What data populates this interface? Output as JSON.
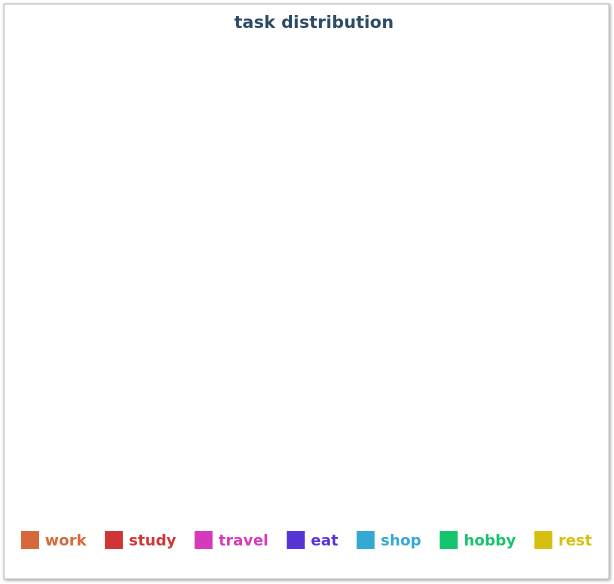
{
  "chart_data": {
    "type": "pie",
    "title": "task distribution",
    "categories": [
      "work",
      "study",
      "travel",
      "eat",
      "shop",
      "hobby",
      "rest"
    ],
    "colors": [
      "#d5693a",
      "#d03535",
      "#d43abb",
      "#5633d3",
      "#33a9d3",
      "#12c46b",
      "#d6bf0e"
    ],
    "legend": "bottom"
  }
}
